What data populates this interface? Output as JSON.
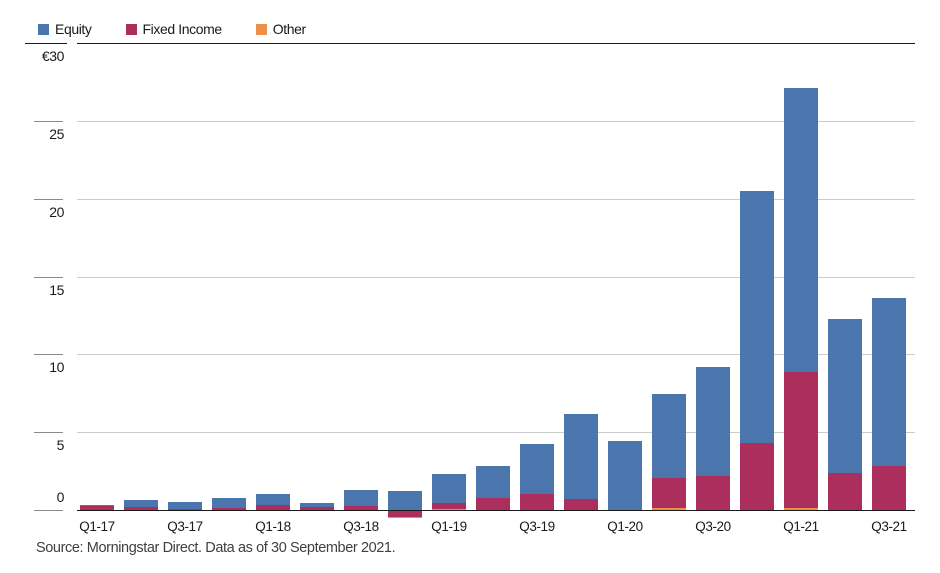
{
  "chart_data": {
    "type": "bar",
    "stacked": true,
    "title": "",
    "xlabel": "",
    "ylabel": "",
    "y_unit_prefix": "€",
    "categories": [
      "Q1-17",
      "Q2-17",
      "Q3-17",
      "Q4-17",
      "Q1-18",
      "Q2-18",
      "Q3-18",
      "Q4-18",
      "Q1-19",
      "Q2-19",
      "Q3-19",
      "Q4-19",
      "Q1-20",
      "Q2-20",
      "Q3-20",
      "Q4-20",
      "Q1-21",
      "Q2-21",
      "Q3-21"
    ],
    "series": [
      {
        "name": "Equity",
        "color": "#4a76ad",
        "values": [
          0.07,
          0.45,
          0.43,
          0.65,
          0.7,
          0.3,
          1.02,
          1.22,
          1.9,
          2.08,
          3.2,
          5.5,
          4.43,
          5.4,
          7.0,
          16.2,
          18.2,
          9.85,
          10.85
        ]
      },
      {
        "name": "Fixed Income",
        "color": "#ac2e5c",
        "values": [
          0.25,
          0.17,
          0.08,
          0.1,
          0.3,
          0.17,
          0.26,
          -0.37,
          0.35,
          0.75,
          1.02,
          0.7,
          0,
          1.95,
          2.18,
          4.3,
          8.8,
          2.4,
          2.8
        ]
      },
      {
        "name": "Other",
        "color": "#ef8d4b",
        "values": [
          0,
          0,
          0,
          0,
          0,
          0,
          0,
          -0.11,
          0.08,
          0,
          0,
          0,
          0,
          0.12,
          0,
          0,
          0.1,
          0,
          0
        ]
      }
    ],
    "x_tick_labels": [
      "Q1-17",
      "Q3-17",
      "Q1-18",
      "Q3-18",
      "Q1-19",
      "Q3-19",
      "Q1-20",
      "Q3-20",
      "Q1-21",
      "Q3-21"
    ],
    "y_ticks": [
      0,
      5,
      10,
      15,
      20,
      25,
      30
    ],
    "y_tick_labels": [
      "0",
      "5",
      "10",
      "15",
      "20",
      "25",
      "€30"
    ],
    "ylim": [
      -0.6,
      30.3
    ],
    "grid": "horizontal",
    "legend_position": "top-left"
  },
  "footer": {
    "source": "Source: Morningstar Direct. Data as of 30 September 2021."
  },
  "colors": {
    "axis": "#1a1a1a",
    "gridline": "#cccccc",
    "tick": "#8a8a8a",
    "label_text": "#1a1a1a",
    "source_text": "#404040"
  }
}
